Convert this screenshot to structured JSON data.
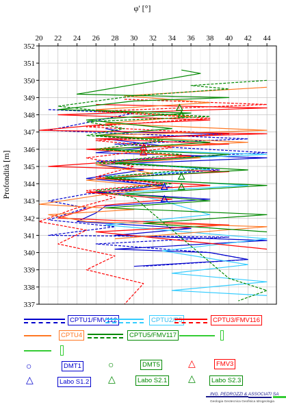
{
  "chart_data": {
    "type": "line",
    "xlabel": "φ' [°]",
    "ylabel": "Profondità [m]",
    "xlim": [
      20,
      45
    ],
    "ylim": [
      337,
      352
    ],
    "x_ticks": [
      "20",
      "22",
      "24",
      "26",
      "28",
      "30",
      "32",
      "34",
      "36",
      "38",
      "40",
      "42",
      "44"
    ],
    "y_ticks": [
      "352",
      "351",
      "350",
      "349",
      "348",
      "347",
      "346",
      "345",
      "344",
      "343",
      "342",
      "341",
      "340",
      "339",
      "338",
      "337"
    ],
    "grid": true,
    "legend_placement": "bottom",
    "series": [
      {
        "name": "CPTU1/FMV112",
        "color": "#0000cc",
        "style": "solid",
        "points": [
          [
            27,
            347.2
          ],
          [
            29,
            347.0
          ],
          [
            40,
            346.9
          ],
          [
            27,
            346.6
          ],
          [
            33,
            346.2
          ],
          [
            26,
            345.8
          ],
          [
            44,
            345.5
          ],
          [
            26,
            345.1
          ],
          [
            31,
            344.8
          ],
          [
            25,
            344.3
          ],
          [
            33,
            343.9
          ],
          [
            26,
            343.5
          ],
          [
            38,
            343.1
          ],
          [
            27,
            342.7
          ],
          [
            26,
            342.3
          ],
          [
            24,
            341.8
          ],
          [
            36,
            341.4
          ],
          [
            28,
            341.0
          ],
          [
            44,
            340.7
          ],
          [
            28,
            340.2
          ],
          [
            38,
            340.0
          ],
          [
            42,
            339.6
          ],
          [
            30,
            339.2
          ]
        ]
      },
      {
        "name": "CPTU1/FMV112",
        "color": "#0000cc",
        "style": "dashed",
        "points": [
          [
            21,
            348.3
          ],
          [
            30,
            348.1
          ],
          [
            21,
            347.1
          ],
          [
            42,
            346.6
          ],
          [
            28,
            346.3
          ],
          [
            44,
            345.8
          ],
          [
            26,
            345.3
          ],
          [
            39,
            344.8
          ],
          [
            27,
            344.3
          ],
          [
            34,
            343.8
          ],
          [
            25,
            343.4
          ],
          [
            21,
            343.0
          ],
          [
            25,
            342.6
          ],
          [
            21,
            341.9
          ],
          [
            28,
            341.5
          ],
          [
            21,
            341.0
          ],
          [
            40,
            340.9
          ],
          [
            26,
            340.5
          ],
          [
            38,
            340.0
          ],
          [
            42,
            339.6
          ],
          [
            31,
            339.2
          ]
        ]
      },
      {
        "name": "CPTU2/P5",
        "color": "#33ccff",
        "style": "solid",
        "points": [
          [
            27,
            346.0
          ],
          [
            44,
            345.7
          ],
          [
            28,
            345.3
          ],
          [
            38,
            344.8
          ],
          [
            27,
            344.4
          ],
          [
            42,
            343.9
          ],
          [
            29,
            343.5
          ],
          [
            33,
            343.0
          ],
          [
            38,
            342.2
          ],
          [
            27,
            341.6
          ],
          [
            44,
            340.8
          ],
          [
            33,
            340.1
          ],
          [
            42,
            339.3
          ],
          [
            34,
            338.8
          ],
          [
            44,
            338.3
          ],
          [
            34,
            337.8
          ],
          [
            44,
            337.5
          ]
        ]
      },
      {
        "name": "CPTU3/FMV116",
        "color": "#ff0000",
        "style": "solid",
        "points": [
          [
            26,
            348.6
          ],
          [
            44,
            348.4
          ],
          [
            22,
            348.0
          ],
          [
            38,
            347.7
          ],
          [
            26,
            347.4
          ],
          [
            20,
            347.1
          ],
          [
            44,
            346.9
          ],
          [
            26,
            346.6
          ],
          [
            40,
            346.3
          ],
          [
            25,
            346.0
          ],
          [
            36,
            345.6
          ],
          [
            21,
            345.0
          ],
          [
            40,
            344.7
          ],
          [
            26,
            344.3
          ],
          [
            38,
            343.9
          ],
          [
            25,
            343.5
          ],
          [
            34,
            343.1
          ],
          [
            26,
            342.7
          ],
          [
            22,
            342.0
          ],
          [
            40,
            341.6
          ],
          [
            26,
            341.2
          ],
          [
            44,
            340.2
          ]
        ]
      },
      {
        "name": "CPTU3/FMV116",
        "color": "#ff0000",
        "style": "dashed",
        "points": [
          [
            29,
            348.9
          ],
          [
            44,
            348.6
          ],
          [
            26,
            348.2
          ],
          [
            38,
            347.8
          ],
          [
            25,
            347.3
          ],
          [
            40,
            346.9
          ],
          [
            26,
            346.5
          ],
          [
            34,
            346.1
          ],
          [
            25,
            345.5
          ],
          [
            30,
            345.0
          ],
          [
            26,
            344.4
          ],
          [
            33,
            344.0
          ],
          [
            25,
            343.6
          ],
          [
            28,
            343.2
          ],
          [
            24,
            342.6
          ],
          [
            20,
            341.8
          ],
          [
            25,
            341.3
          ],
          [
            22,
            340.5
          ],
          [
            28,
            339.8
          ],
          [
            25,
            339.0
          ],
          [
            31,
            338.2
          ],
          [
            29,
            337.0
          ]
        ]
      },
      {
        "name": "CPTU4",
        "color": "#ff7722",
        "style": "solid",
        "points": [
          [
            44,
            349.6
          ],
          [
            29,
            349.1
          ],
          [
            38,
            348.7
          ],
          [
            26,
            348.3
          ],
          [
            36,
            347.9
          ],
          [
            27,
            347.5
          ],
          [
            44,
            347.1
          ],
          [
            26,
            346.8
          ],
          [
            42,
            346.4
          ],
          [
            26,
            346.0
          ],
          [
            37,
            345.5
          ],
          [
            26,
            345.1
          ],
          [
            32,
            344.6
          ],
          [
            25,
            344.2
          ],
          [
            33,
            343.8
          ],
          [
            26,
            343.3
          ],
          [
            20,
            342.8
          ],
          [
            30,
            342.5
          ],
          [
            21,
            342.2
          ],
          [
            25,
            341.8
          ],
          [
            44,
            341.5
          ],
          [
            28,
            340.8
          ]
        ]
      },
      {
        "name": "CPTU5/FMV117",
        "color": "#008800",
        "style": "solid",
        "points": [
          [
            35,
            350.6
          ],
          [
            37,
            350.4
          ],
          [
            24,
            349.2
          ],
          [
            40,
            349.0
          ],
          [
            30,
            348.8
          ],
          [
            22,
            348.3
          ],
          [
            36,
            348.1
          ],
          [
            25,
            347.7
          ],
          [
            34,
            347.2
          ],
          [
            26,
            346.8
          ],
          [
            38,
            346.4
          ],
          [
            27,
            346.0
          ],
          [
            40,
            345.7
          ],
          [
            28,
            345.2
          ],
          [
            42,
            344.8
          ],
          [
            27,
            344.3
          ],
          [
            44,
            343.9
          ],
          [
            29,
            343.4
          ],
          [
            38,
            343.0
          ],
          [
            27,
            342.6
          ],
          [
            44,
            342.2
          ],
          [
            31,
            341.7
          ],
          [
            44,
            341.2
          ]
        ]
      },
      {
        "name": "CPTU5/FMV117",
        "color": "#008800",
        "style": "dashed",
        "points": [
          [
            44,
            350.0
          ],
          [
            36,
            349.7
          ],
          [
            40,
            349.5
          ],
          [
            30,
            349.1
          ],
          [
            22,
            348.5
          ],
          [
            27,
            348.2
          ],
          [
            38,
            347.9
          ],
          [
            25,
            347.6
          ],
          [
            29,
            347.2
          ],
          [
            25,
            346.8
          ],
          [
            33,
            346.5
          ],
          [
            26,
            346.0
          ],
          [
            35,
            345.7
          ],
          [
            26,
            345.2
          ],
          [
            38,
            344.9
          ],
          [
            27,
            344.4
          ],
          [
            34,
            344.0
          ],
          [
            26,
            343.6
          ],
          [
            30,
            343.2
          ],
          [
            40,
            338.5
          ],
          [
            44,
            337.8
          ],
          [
            41,
            337.2
          ]
        ]
      }
    ],
    "points_series": [
      {
        "name": "FMV3",
        "marker": "triangle",
        "color": "#ff0000",
        "points": [
          [
            31,
            346.1
          ],
          [
            31,
            345.8
          ]
        ]
      },
      {
        "name": "Labo S1.2",
        "marker": "triangle",
        "color": "#0000cc",
        "points": [
          [
            33.2,
            343.8
          ],
          [
            33.2,
            343.1
          ]
        ]
      },
      {
        "name": "Labo S2.1",
        "marker": "triangle",
        "color": "#008800",
        "points": [
          [
            34.8,
            348.4
          ],
          [
            35,
            344.4
          ]
        ]
      },
      {
        "name": "Labo S2.3",
        "marker": "triangle",
        "color": "#008800",
        "points": [
          [
            35,
            348.0
          ],
          [
            35,
            343.8
          ]
        ]
      }
    ]
  },
  "legend": [
    {
      "label": "CPTU1/FMV112",
      "color": "#0000cc",
      "kind": "line-dashed-pair"
    },
    {
      "label": "CPTU2/P5",
      "color": "#33ccff",
      "kind": "line-dashed-pair"
    },
    {
      "label": "CPTU3/FMV116",
      "color": "#ff0000",
      "kind": "line-dashed-pair"
    },
    {
      "label": "CPTU4",
      "color": "#ff7722",
      "kind": "line"
    },
    {
      "label": "CPTU5/FMV117",
      "color": "#008800",
      "kind": "line-dashed-pair"
    },
    {
      "label": "",
      "color": "#33cc33",
      "kind": "line"
    },
    {
      "label": "",
      "color": "#33cc33",
      "kind": "line"
    },
    {
      "label": "DMT1",
      "color": "#0000cc",
      "kind": "circle"
    },
    {
      "label": "DMT5",
      "color": "#008800",
      "kind": "circle"
    },
    {
      "label": "FMV3",
      "color": "#ff0000",
      "kind": "triangle"
    },
    {
      "label": "Labo S1.2",
      "color": "#0000cc",
      "kind": "triangle"
    },
    {
      "label": "Labo S2.1",
      "color": "#008800",
      "kind": "triangle"
    },
    {
      "label": "Labo S2.3",
      "color": "#008800",
      "kind": "triangle"
    }
  ],
  "footer": {
    "company": "ING. PEDROZZI & ASSOCIATI SA",
    "subtitle": "Geologia Geotecnica Geofisica Idrogeologia",
    "logo_color_a": "#1a1a8c",
    "logo_color_b": "#33cc33"
  }
}
